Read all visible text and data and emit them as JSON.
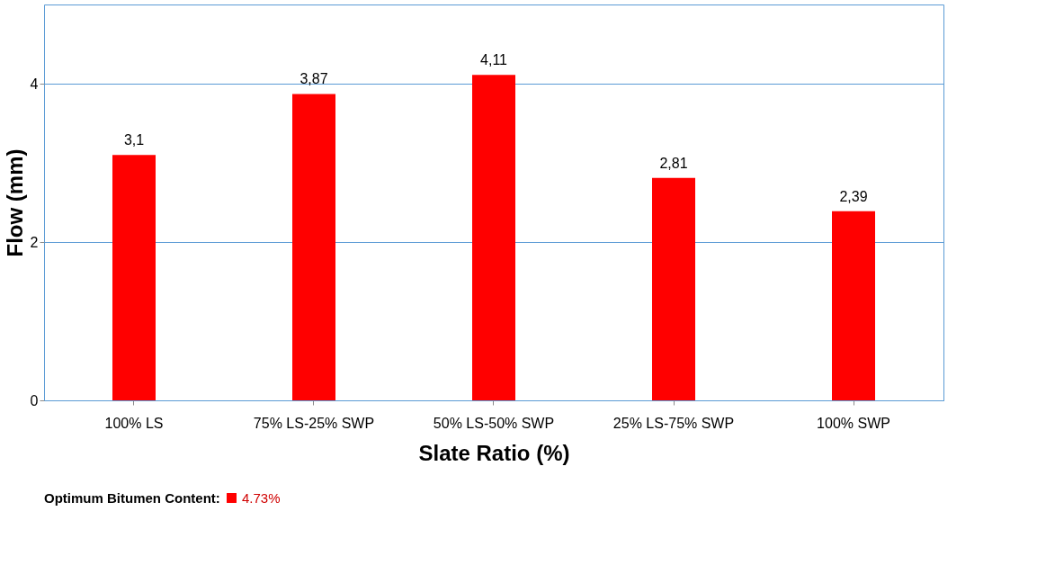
{
  "chart_data": {
    "type": "bar",
    "xlabel": "Slate Ratio (%)",
    "ylabel": "Flow (mm)",
    "legend_title": "Optimum Bitumen Content:",
    "categories": [
      "100% LS",
      "75% LS-25% SWP",
      "50% LS-50% SWP",
      "25% LS-75% SWP",
      "100% SWP"
    ],
    "series": [
      {
        "name": "4.73%",
        "color": "#ff0000",
        "values": [
          3.1,
          3.87,
          4.11,
          2.81,
          2.39
        ],
        "value_labels": [
          "3,1",
          "3,87",
          "4,11",
          "2,81",
          "2,39"
        ]
      }
    ],
    "ylim": [
      0,
      5
    ],
    "yticks": [
      0,
      2,
      4
    ],
    "grid": "y",
    "legend": "bottom"
  }
}
